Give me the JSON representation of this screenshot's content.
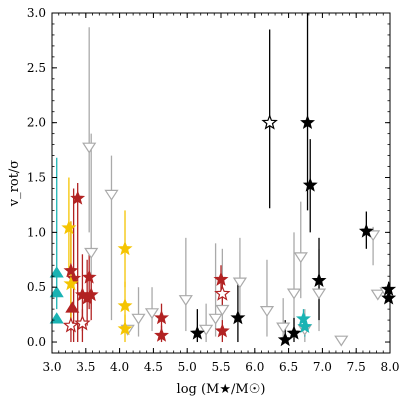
{
  "chart_data": {
    "type": "scatter",
    "xlabel": "log (M★/M☉)",
    "ylabel": "v_rot/σ",
    "xlim": [
      3.0,
      8.0
    ],
    "ylim": [
      -0.1,
      3.0
    ],
    "xticks": [
      {
        "v": 3.0,
        "label": "3.0"
      },
      {
        "v": 3.5,
        "label": "3.5"
      },
      {
        "v": 4.0,
        "label": "4.0"
      },
      {
        "v": 4.5,
        "label": "4.5"
      },
      {
        "v": 5.0,
        "label": "5.0"
      },
      {
        "v": 5.5,
        "label": "5.5"
      },
      {
        "v": 6.0,
        "label": "6.0"
      },
      {
        "v": 6.5,
        "label": "6.5"
      },
      {
        "v": 7.0,
        "label": "7.0"
      },
      {
        "v": 7.5,
        "label": "7.5"
      },
      {
        "v": 8.0,
        "label": "8.0"
      }
    ],
    "yticks": [
      {
        "v": 0.0,
        "label": "0.0"
      },
      {
        "v": 0.5,
        "label": "0.5"
      },
      {
        "v": 1.0,
        "label": "1.0"
      },
      {
        "v": 1.5,
        "label": "1.5"
      },
      {
        "v": 2.0,
        "label": "2.0"
      },
      {
        "v": 2.5,
        "label": "2.5"
      },
      {
        "v": 3.0,
        "label": "3.0"
      }
    ],
    "grid": false,
    "colors": {
      "gray": "#aaaaaa",
      "black": "#000000",
      "red": "#b22222",
      "gold": "#f5c400",
      "cyan": "#1ab3b3"
    },
    "series": [
      {
        "marker": "triangle-down-open",
        "color": "gray",
        "points": [
          {
            "x": 3.55,
            "y": 1.78,
            "lo": 1.0,
            "hi": 2.87
          },
          {
            "x": 3.58,
            "y": 0.82,
            "lo": 0.3,
            "hi": 1.9
          },
          {
            "x": 3.88,
            "y": 1.35,
            "lo": 0.2,
            "hi": 1.7
          },
          {
            "x": 4.12,
            "y": 0.12
          },
          {
            "x": 4.28,
            "y": 0.22,
            "lo": 0.05,
            "hi": 0.5
          },
          {
            "x": 4.48,
            "y": 0.27,
            "lo": 0.1,
            "hi": 0.5
          },
          {
            "x": 4.98,
            "y": 0.39,
            "lo": 0.1,
            "hi": 0.95
          },
          {
            "x": 5.28,
            "y": 0.12,
            "lo": 0.0,
            "hi": 0.35
          },
          {
            "x": 5.42,
            "y": 0.22,
            "lo": 0.05,
            "hi": 0.9
          },
          {
            "x": 5.52,
            "y": 0.3,
            "lo": 0.1,
            "hi": 0.85
          },
          {
            "x": 5.78,
            "y": 0.55,
            "lo": 0.2,
            "hi": 0.95
          },
          {
            "x": 6.18,
            "y": 0.29,
            "lo": 0.05,
            "hi": 0.75
          },
          {
            "x": 6.42,
            "y": 0.14,
            "lo": 0.0,
            "hi": 0.4
          },
          {
            "x": 6.58,
            "y": 0.45,
            "lo": 0.1,
            "hi": 1.0
          },
          {
            "x": 6.68,
            "y": 0.78,
            "lo": 0.4,
            "hi": 1.28
          },
          {
            "x": 6.74,
            "y": 0.12,
            "lo": 0.0,
            "hi": 0.3
          },
          {
            "x": 6.95,
            "y": 0.45,
            "lo": 0.1,
            "hi": 0.85
          },
          {
            "x": 7.28,
            "y": 0.02
          },
          {
            "x": 7.75,
            "y": 0.98,
            "lo": 0.7,
            "hi": 1.05
          },
          {
            "x": 7.82,
            "y": 0.44
          },
          {
            "x": 7.95,
            "y": 0.46
          }
        ]
      },
      {
        "marker": "star-filled",
        "color": "black",
        "points": [
          {
            "x": 5.15,
            "y": 0.08,
            "lo": 0.0,
            "hi": 0.3
          },
          {
            "x": 5.75,
            "y": 0.22,
            "lo": 0.0,
            "hi": 0.55
          },
          {
            "x": 6.45,
            "y": 0.02,
            "lo": 0.0,
            "hi": 0.2
          },
          {
            "x": 6.58,
            "y": 0.08,
            "lo": 0.0,
            "hi": 0.22
          },
          {
            "x": 6.78,
            "y": 2.0,
            "lo": 1.2,
            "hi": 3.0
          },
          {
            "x": 6.82,
            "y": 1.43,
            "lo": 1.0,
            "hi": 1.85
          },
          {
            "x": 6.95,
            "y": 0.56,
            "lo": 0.2,
            "hi": 0.95
          },
          {
            "x": 7.65,
            "y": 1.01,
            "lo": 0.85,
            "hi": 1.19
          },
          {
            "x": 7.98,
            "y": 0.48,
            "lo": 0.4,
            "hi": 0.55
          },
          {
            "x": 7.98,
            "y": 0.4
          }
        ]
      },
      {
        "marker": "star-open",
        "color": "black",
        "points": [
          {
            "x": 6.22,
            "y": 2.0,
            "lo": 1.22,
            "hi": 2.85
          }
        ]
      },
      {
        "marker": "star-filled",
        "color": "red",
        "points": [
          {
            "x": 3.28,
            "y": 0.65,
            "lo": 0.1,
            "hi": 1.1
          },
          {
            "x": 3.32,
            "y": 0.58,
            "lo": 0.0,
            "hi": 1.4
          },
          {
            "x": 3.38,
            "y": 1.31,
            "lo": 0.0,
            "hi": 1.45
          },
          {
            "x": 3.45,
            "y": 0.43,
            "lo": 0.1,
            "hi": 0.8
          },
          {
            "x": 3.52,
            "y": 0.4,
            "lo": 0.15,
            "hi": 0.75
          },
          {
            "x": 3.55,
            "y": 0.59,
            "lo": 0.3,
            "hi": 0.85
          },
          {
            "x": 3.58,
            "y": 0.43,
            "lo": 0.2,
            "hi": 0.6
          },
          {
            "x": 4.62,
            "y": 0.22,
            "lo": 0.05,
            "hi": 0.35
          },
          {
            "x": 4.62,
            "y": 0.06,
            "lo": 0.0,
            "hi": 0.15
          },
          {
            "x": 5.5,
            "y": 0.57,
            "lo": 0.4,
            "hi": 0.7
          },
          {
            "x": 5.52,
            "y": 0.1,
            "lo": 0.0,
            "hi": 0.2
          }
        ]
      },
      {
        "marker": "star-open",
        "color": "red",
        "points": [
          {
            "x": 3.28,
            "y": 0.15,
            "lo": 0.0,
            "hi": 0.3
          },
          {
            "x": 3.45,
            "y": 0.17,
            "lo": 0.0,
            "hi": 0.3
          },
          {
            "x": 5.52,
            "y": 0.44,
            "lo": 0.3,
            "hi": 0.6
          }
        ]
      },
      {
        "marker": "triangle-up-filled",
        "color": "red",
        "points": [
          {
            "x": 3.3,
            "y": 0.31
          }
        ]
      },
      {
        "marker": "star-filled",
        "color": "gold",
        "points": [
          {
            "x": 3.25,
            "y": 1.04,
            "lo": 0.6,
            "hi": 1.5
          },
          {
            "x": 3.28,
            "y": 0.53,
            "lo": 0.2,
            "hi": 1.1
          },
          {
            "x": 4.08,
            "y": 0.85,
            "lo": 0.5,
            "hi": 1.2
          },
          {
            "x": 4.08,
            "y": 0.33,
            "lo": 0.1,
            "hi": 0.55
          },
          {
            "x": 4.08,
            "y": 0.12,
            "lo": 0.0,
            "hi": 0.25
          }
        ]
      },
      {
        "marker": "triangle-up-filled",
        "color": "cyan",
        "points": [
          {
            "x": 3.07,
            "y": 0.63,
            "lo": 0.3,
            "hi": 1.68
          },
          {
            "x": 3.07,
            "y": 0.45
          },
          {
            "x": 3.07,
            "y": 0.21
          }
        ]
      },
      {
        "marker": "star-filled",
        "color": "cyan",
        "points": [
          {
            "x": 6.72,
            "y": 0.21,
            "lo": 0.1,
            "hi": 0.3
          },
          {
            "x": 6.74,
            "y": 0.14,
            "lo": 0.05,
            "hi": 0.25
          }
        ]
      }
    ]
  }
}
